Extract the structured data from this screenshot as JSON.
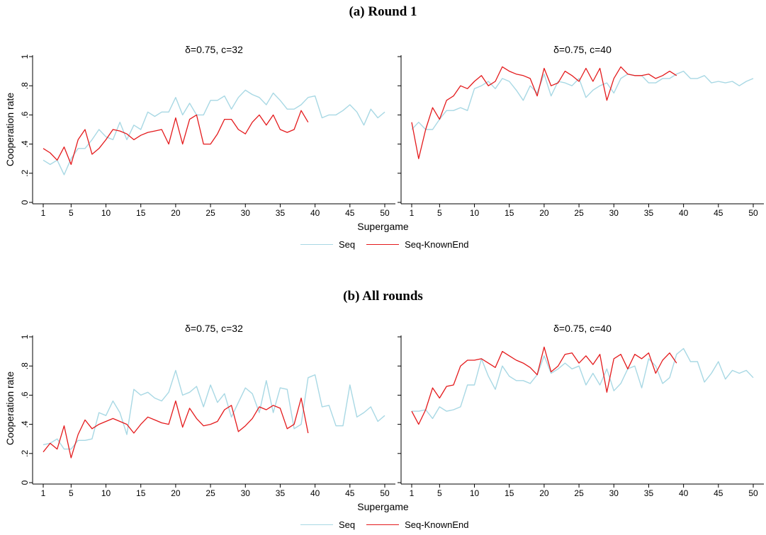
{
  "colors": {
    "seq": "#a8d8e4",
    "known_end": "#e41a1c",
    "axis": "#000000"
  },
  "legend": {
    "seq": "Seq",
    "known_end": "Seq-KnownEnd"
  },
  "xlabel": "Supergame",
  "ylabel": "Cooperation rate",
  "chart_data": [
    {
      "type": "line",
      "group_title": "(a) Round 1",
      "title": "δ=0.75, c=32",
      "xlabel": "Supergame",
      "ylabel": "Cooperation rate",
      "xticks": [
        1,
        5,
        10,
        15,
        20,
        25,
        30,
        35,
        40,
        45,
        50
      ],
      "yticks": [
        "0",
        ".2",
        ".4",
        ".6",
        ".8",
        "1"
      ],
      "xlim": [
        1,
        50
      ],
      "ylim": [
        0,
        1
      ],
      "series": [
        {
          "name": "Seq",
          "x_start": 1,
          "values": [
            0.29,
            0.26,
            0.29,
            0.19,
            0.3,
            0.37,
            0.37,
            0.43,
            0.5,
            0.45,
            0.43,
            0.55,
            0.43,
            0.53,
            0.5,
            0.62,
            0.59,
            0.62,
            0.62,
            0.72,
            0.6,
            0.68,
            0.6,
            0.6,
            0.7,
            0.7,
            0.73,
            0.64,
            0.72,
            0.77,
            0.74,
            0.72,
            0.67,
            0.75,
            0.7,
            0.64,
            0.64,
            0.67,
            0.72,
            0.73,
            0.58,
            0.6,
            0.6,
            0.63,
            0.67,
            0.62,
            0.53,
            0.64,
            0.58,
            0.62
          ]
        },
        {
          "name": "Seq-KnownEnd",
          "x_start": 1,
          "values": [
            0.37,
            0.34,
            0.29,
            0.38,
            0.26,
            0.43,
            0.5,
            0.33,
            0.37,
            0.43,
            0.5,
            0.49,
            0.47,
            0.43,
            0.46,
            0.48,
            0.49,
            0.5,
            0.4,
            0.58,
            0.4,
            0.57,
            0.6,
            0.4,
            0.4,
            0.47,
            0.57,
            0.57,
            0.5,
            0.47,
            0.55,
            0.6,
            0.53,
            0.6,
            0.5,
            0.48,
            0.5,
            0.63,
            0.55
          ]
        }
      ]
    },
    {
      "type": "line",
      "group_title": "(a) Round 1",
      "title": "δ=0.75, c=40",
      "xlabel": "Supergame",
      "xticks": [
        1,
        5,
        10,
        15,
        20,
        25,
        30,
        35,
        40,
        45,
        50
      ],
      "xlim": [
        1,
        50
      ],
      "ylim": [
        0,
        1
      ],
      "series": [
        {
          "name": "Seq",
          "x_start": 1,
          "values": [
            0.5,
            0.55,
            0.5,
            0.5,
            0.57,
            0.63,
            0.63,
            0.65,
            0.63,
            0.78,
            0.8,
            0.83,
            0.78,
            0.85,
            0.83,
            0.77,
            0.7,
            0.8,
            0.75,
            0.88,
            0.73,
            0.83,
            0.82,
            0.8,
            0.85,
            0.72,
            0.77,
            0.8,
            0.82,
            0.75,
            0.85,
            0.88,
            0.87,
            0.87,
            0.82,
            0.82,
            0.85,
            0.85,
            0.88,
            0.9,
            0.85,
            0.85,
            0.87,
            0.82,
            0.83,
            0.82,
            0.83,
            0.8,
            0.83,
            0.85
          ]
        },
        {
          "name": "Seq-KnownEnd",
          "x_start": 1,
          "values": [
            0.55,
            0.3,
            0.5,
            0.65,
            0.57,
            0.7,
            0.73,
            0.8,
            0.78,
            0.83,
            0.87,
            0.8,
            0.83,
            0.93,
            0.9,
            0.88,
            0.87,
            0.85,
            0.73,
            0.92,
            0.8,
            0.82,
            0.9,
            0.87,
            0.83,
            0.92,
            0.83,
            0.92,
            0.7,
            0.85,
            0.93,
            0.88,
            0.87,
            0.87,
            0.88,
            0.85,
            0.87,
            0.9,
            0.87
          ]
        }
      ]
    },
    {
      "type": "line",
      "group_title": "(b) All rounds",
      "title": "δ=0.75, c=32",
      "xlabel": "Supergame",
      "ylabel": "Cooperation rate",
      "xticks": [
        1,
        5,
        10,
        15,
        20,
        25,
        30,
        35,
        40,
        45,
        50
      ],
      "yticks": [
        "0",
        ".2",
        ".4",
        ".6",
        ".8",
        "1"
      ],
      "xlim": [
        1,
        50
      ],
      "ylim": [
        0,
        1
      ],
      "series": [
        {
          "name": "Seq",
          "x_start": 1,
          "values": [
            0.26,
            0.27,
            0.3,
            0.23,
            0.23,
            0.29,
            0.29,
            0.3,
            0.48,
            0.46,
            0.56,
            0.48,
            0.33,
            0.64,
            0.6,
            0.62,
            0.58,
            0.56,
            0.62,
            0.77,
            0.6,
            0.62,
            0.66,
            0.52,
            0.67,
            0.55,
            0.61,
            0.45,
            0.55,
            0.65,
            0.61,
            0.48,
            0.7,
            0.48,
            0.65,
            0.64,
            0.37,
            0.4,
            0.72,
            0.74,
            0.52,
            0.53,
            0.39,
            0.39,
            0.67,
            0.45,
            0.48,
            0.52,
            0.42,
            0.46
          ]
        },
        {
          "name": "Seq-KnownEnd",
          "x_start": 1,
          "values": [
            0.21,
            0.27,
            0.23,
            0.39,
            0.17,
            0.33,
            0.43,
            0.37,
            0.4,
            0.42,
            0.44,
            0.42,
            0.4,
            0.34,
            0.4,
            0.45,
            0.43,
            0.41,
            0.4,
            0.56,
            0.38,
            0.51,
            0.44,
            0.39,
            0.4,
            0.42,
            0.5,
            0.53,
            0.35,
            0.39,
            0.44,
            0.52,
            0.5,
            0.53,
            0.51,
            0.37,
            0.4,
            0.58,
            0.34
          ]
        }
      ]
    },
    {
      "type": "line",
      "group_title": "(b) All rounds",
      "title": "δ=0.75, c=40",
      "xlabel": "Supergame",
      "xticks": [
        1,
        5,
        10,
        15,
        20,
        25,
        30,
        35,
        40,
        45,
        50
      ],
      "xlim": [
        1,
        50
      ],
      "ylim": [
        0,
        1
      ],
      "series": [
        {
          "name": "Seq",
          "x_start": 1,
          "values": [
            0.49,
            0.49,
            0.5,
            0.44,
            0.52,
            0.49,
            0.5,
            0.52,
            0.67,
            0.67,
            0.85,
            0.73,
            0.64,
            0.8,
            0.73,
            0.7,
            0.7,
            0.68,
            0.74,
            0.87,
            0.75,
            0.78,
            0.82,
            0.78,
            0.8,
            0.67,
            0.75,
            0.67,
            0.78,
            0.63,
            0.68,
            0.78,
            0.8,
            0.65,
            0.85,
            0.8,
            0.68,
            0.72,
            0.88,
            0.92,
            0.83,
            0.83,
            0.69,
            0.75,
            0.83,
            0.71,
            0.77,
            0.75,
            0.77,
            0.72
          ]
        },
        {
          "name": "Seq-KnownEnd",
          "x_start": 1,
          "values": [
            0.49,
            0.4,
            0.5,
            0.65,
            0.58,
            0.66,
            0.67,
            0.8,
            0.84,
            0.84,
            0.85,
            0.82,
            0.79,
            0.9,
            0.87,
            0.84,
            0.82,
            0.79,
            0.74,
            0.93,
            0.76,
            0.8,
            0.88,
            0.89,
            0.82,
            0.87,
            0.81,
            0.88,
            0.62,
            0.85,
            0.88,
            0.78,
            0.88,
            0.85,
            0.89,
            0.75,
            0.84,
            0.89,
            0.82
          ]
        }
      ]
    }
  ]
}
